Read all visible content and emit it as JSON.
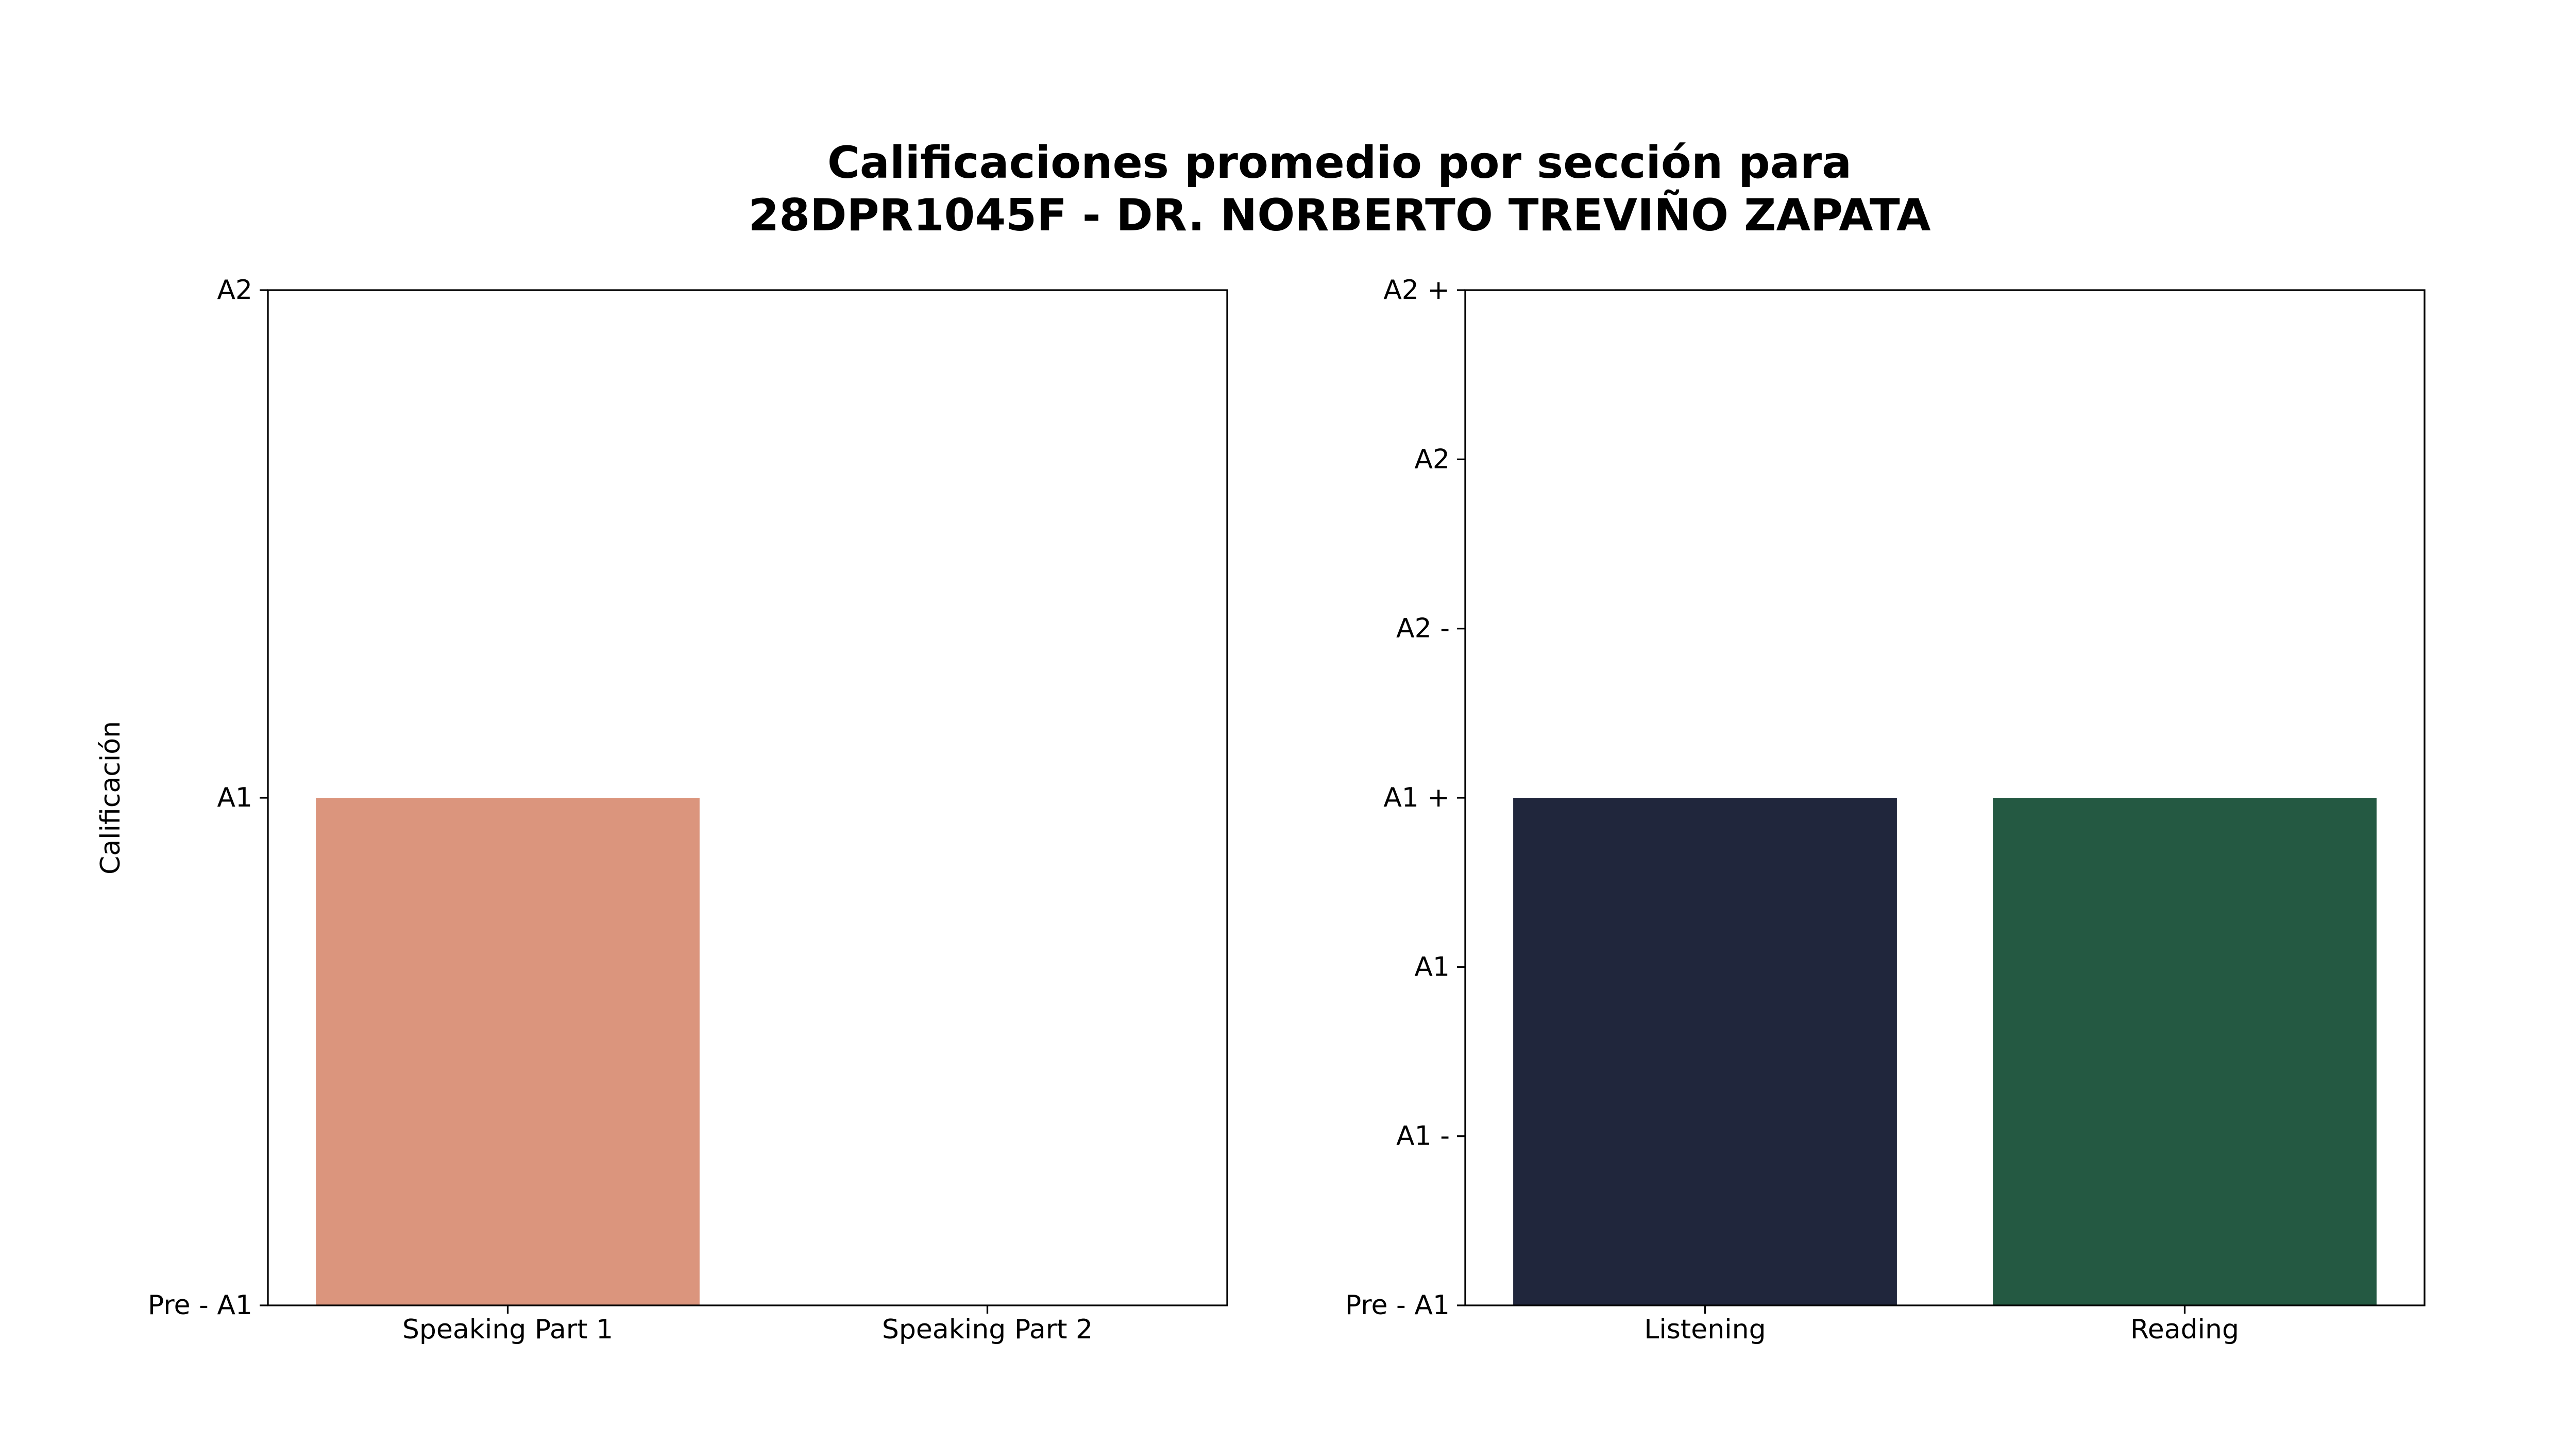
{
  "title_lines": [
    "Calificaciones promedio por sección para",
    "28DPR1045F - DR. NORBERTO TREVIÑO ZAPATA"
  ],
  "chart_data": [
    {
      "type": "bar",
      "ylabel": "Calificación",
      "categories": [
        "Speaking Part 1",
        "Speaking Part 2"
      ],
      "values": [
        1,
        0
      ],
      "colors": [
        "#db957d",
        "#db957d"
      ],
      "yticks": [
        {
          "value": 0,
          "label": "Pre - A1"
        },
        {
          "value": 1,
          "label": "A1"
        },
        {
          "value": 2,
          "label": "A2"
        }
      ],
      "ylim": [
        0,
        2
      ],
      "grid": false
    },
    {
      "type": "bar",
      "ylabel": "",
      "categories": [
        "Listening",
        "Reading"
      ],
      "values": [
        3,
        3
      ],
      "colors": [
        "#20263c",
        "#245942"
      ],
      "yticks": [
        {
          "value": 0,
          "label": "Pre - A1"
        },
        {
          "value": 1,
          "label": "A1 -"
        },
        {
          "value": 2,
          "label": "A1"
        },
        {
          "value": 3,
          "label": "A1 +"
        },
        {
          "value": 4,
          "label": "A2 -"
        },
        {
          "value": 5,
          "label": "A2"
        },
        {
          "value": 6,
          "label": "A2 +"
        }
      ],
      "ylim": [
        0,
        6
      ],
      "grid": false
    }
  ]
}
